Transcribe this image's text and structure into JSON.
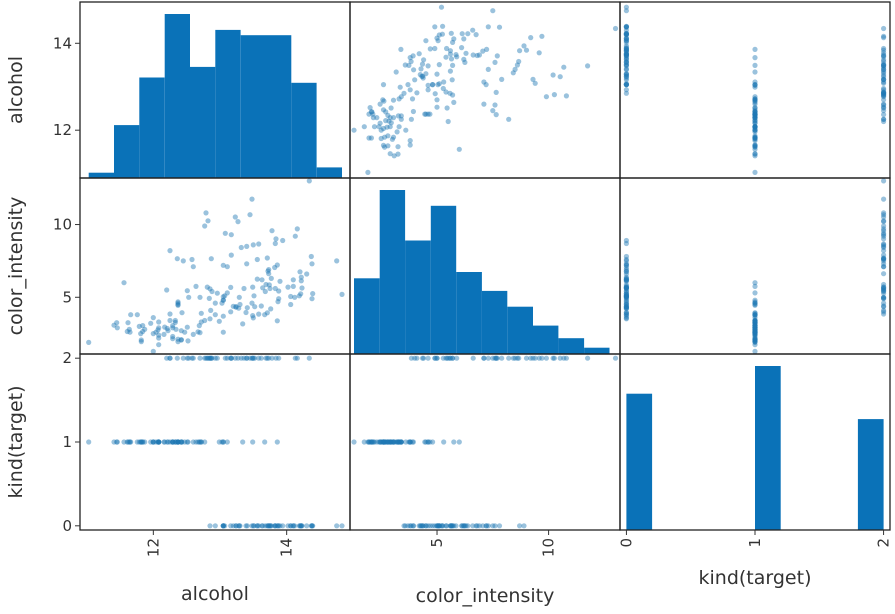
{
  "chart_data": {
    "type": "scatter-matrix",
    "variables": [
      "alcohol",
      "color_intensity",
      "kind(target)"
    ],
    "colors": {
      "marker": "#1f77b4",
      "bar": "#0a72b8",
      "frame": "#222222",
      "text": "#333333"
    },
    "ranges": {
      "alcohol": [
        10.9,
        14.95
      ],
      "color_intensity": [
        1.1,
        13.2
      ],
      "kind(target)": [
        -0.05,
        2.05
      ]
    },
    "ticks": {
      "alcohol": [
        {
          "v": 12,
          "label": "12"
        },
        {
          "v": 14,
          "label": "14"
        }
      ],
      "color_intensity": [
        {
          "v": 5,
          "label": "5"
        },
        {
          "v": 10,
          "label": "10"
        }
      ],
      "kind(target)": [
        {
          "v": 0,
          "label": "0"
        },
        {
          "v": 1,
          "label": "1"
        },
        {
          "v": 2,
          "label": "2"
        }
      ]
    },
    "histograms": {
      "alcohol": {
        "edges": [
          11.03,
          11.41,
          11.79,
          12.17,
          12.55,
          12.93,
          13.31,
          13.69,
          14.07,
          14.45,
          14.83
        ],
        "counts": [
          1,
          10,
          19,
          31,
          21,
          28,
          27,
          27,
          18,
          2
        ]
      },
      "color_intensity": {
        "edges": [
          1.28,
          2.43,
          3.57,
          4.72,
          5.86,
          7.01,
          8.15,
          9.3,
          10.44,
          11.59,
          12.73
        ],
        "counts": [
          24,
          52,
          36,
          47,
          26,
          20,
          15,
          9,
          5,
          2
        ]
      },
      "kind(target)": {
        "edges": [
          0,
          0.2,
          0.4,
          0.6,
          0.8,
          1.0,
          1.2,
          1.4,
          1.6,
          1.8,
          2.0
        ],
        "counts": [
          59,
          0,
          0,
          0,
          0,
          71,
          0,
          0,
          0,
          48
        ]
      }
    },
    "points": [
      [
        14.23,
        5.64,
        0
      ],
      [
        13.2,
        4.38,
        0
      ],
      [
        13.16,
        5.68,
        0
      ],
      [
        14.37,
        7.8,
        0
      ],
      [
        13.24,
        4.32,
        0
      ],
      [
        14.2,
        6.75,
        0
      ],
      [
        14.39,
        5.25,
        0
      ],
      [
        14.06,
        5.05,
        0
      ],
      [
        14.83,
        5.2,
        0
      ],
      [
        13.86,
        7.22,
        0
      ],
      [
        14.1,
        5.75,
        0
      ],
      [
        14.12,
        5.0,
        0
      ],
      [
        13.75,
        5.6,
        0
      ],
      [
        14.75,
        7.5,
        0
      ],
      [
        14.38,
        7.3,
        0
      ],
      [
        13.63,
        6.2,
        0
      ],
      [
        14.3,
        6.6,
        0
      ],
      [
        13.83,
        8.7,
        0
      ],
      [
        14.19,
        5.1,
        0
      ],
      [
        13.64,
        5.65,
        0
      ],
      [
        14.06,
        4.5,
        0
      ],
      [
        12.93,
        3.8,
        0
      ],
      [
        13.71,
        3.93,
        0
      ],
      [
        12.85,
        3.52,
        0
      ],
      [
        13.5,
        3.58,
        0
      ],
      [
        13.05,
        4.8,
        0
      ],
      [
        13.39,
        3.95,
        0
      ],
      [
        13.3,
        4.5,
        0
      ],
      [
        13.87,
        4.7,
        0
      ],
      [
        14.02,
        5.7,
        0
      ],
      [
        13.73,
        6.9,
        0
      ],
      [
        13.58,
        3.84,
        0
      ],
      [
        13.68,
        5.4,
        0
      ],
      [
        13.76,
        4.2,
        0
      ],
      [
        13.51,
        5.1,
        0
      ],
      [
        13.48,
        4.6,
        0
      ],
      [
        13.28,
        4.25,
        0
      ],
      [
        13.05,
        3.7,
        0
      ],
      [
        13.07,
        5.1,
        0
      ],
      [
        14.22,
        6.13,
        0
      ],
      [
        13.56,
        7.6,
        0
      ],
      [
        13.41,
        4.28,
        0
      ],
      [
        13.88,
        5.43,
        0
      ],
      [
        13.24,
        4.36,
        0
      ],
      [
        13.05,
        5.04,
        0
      ],
      [
        14.21,
        5.24,
        0
      ],
      [
        14.38,
        4.9,
        0
      ],
      [
        13.9,
        6.1,
        0
      ],
      [
        14.1,
        6.2,
        0
      ],
      [
        13.94,
        8.9,
        0
      ],
      [
        13.05,
        7.2,
        0
      ],
      [
        13.83,
        5.6,
        0
      ],
      [
        13.82,
        7.05,
        0
      ],
      [
        13.77,
        6.3,
        0
      ],
      [
        13.74,
        5.85,
        0
      ],
      [
        13.56,
        6.25,
        0
      ],
      [
        14.22,
        6.38,
        0
      ],
      [
        13.29,
        5.0,
        0
      ],
      [
        13.72,
        6.8,
        0
      ],
      [
        12.37,
        1.95,
        1
      ],
      [
        12.33,
        3.27,
        1
      ],
      [
        12.64,
        5.75,
        1
      ],
      [
        13.67,
        3.8,
        1
      ],
      [
        12.37,
        4.45,
        1
      ],
      [
        12.17,
        2.95,
        1
      ],
      [
        12.37,
        4.6,
        1
      ],
      [
        13.11,
        5.3,
        1
      ],
      [
        12.37,
        4.68,
        1
      ],
      [
        13.34,
        3.17,
        1
      ],
      [
        12.21,
        2.85,
        1
      ],
      [
        12.29,
        3.05,
        1
      ],
      [
        13.86,
        3.38,
        1
      ],
      [
        13.49,
        3.74,
        1
      ],
      [
        12.99,
        3.35,
        1
      ],
      [
        11.96,
        3.21,
        1
      ],
      [
        11.66,
        3.8,
        1
      ],
      [
        13.03,
        4.6,
        1
      ],
      [
        11.84,
        2.65,
        1
      ],
      [
        12.33,
        3.4,
        1
      ],
      [
        12.7,
        2.57,
        1
      ],
      [
        12.0,
        2.5,
        1
      ],
      [
        12.72,
        3.9,
        1
      ],
      [
        12.08,
        2.2,
        1
      ],
      [
        13.05,
        4.8,
        1
      ],
      [
        11.84,
        3.05,
        1
      ],
      [
        12.67,
        2.62,
        1
      ],
      [
        12.16,
        2.45,
        1
      ],
      [
        11.65,
        2.6,
        1
      ],
      [
        11.64,
        2.8,
        1
      ],
      [
        12.08,
        1.74,
        1
      ],
      [
        12.08,
        2.4,
        1
      ],
      [
        12.0,
        3.6,
        1
      ],
      [
        12.69,
        3.05,
        1
      ],
      [
        12.29,
        2.15,
        1
      ],
      [
        11.62,
        3.25,
        1
      ],
      [
        12.47,
        2.6,
        1
      ],
      [
        11.81,
        2.5,
        1
      ],
      [
        12.29,
        2.9,
        1
      ],
      [
        12.37,
        4.5,
        1
      ],
      [
        12.29,
        2.3,
        1
      ],
      [
        12.08,
        3.3,
        1
      ],
      [
        12.6,
        2.45,
        1
      ],
      [
        12.34,
        2.8,
        1
      ],
      [
        11.82,
        2.06,
        1
      ],
      [
        12.51,
        2.94,
        1
      ],
      [
        12.42,
        2.7,
        1
      ],
      [
        12.25,
        3.4,
        1
      ],
      [
        12.72,
        3.3,
        1
      ],
      [
        12.22,
        2.7,
        1
      ],
      [
        11.61,
        2.65,
        1
      ],
      [
        11.46,
        2.9,
        1
      ],
      [
        12.52,
        2.0,
        1
      ],
      [
        11.76,
        3.8,
        1
      ],
      [
        11.41,
        3.08,
        1
      ],
      [
        12.08,
        2.9,
        1
      ],
      [
        11.03,
        1.9,
        1
      ],
      [
        11.82,
        1.95,
        1
      ],
      [
        12.42,
        2.06,
        1
      ],
      [
        12.77,
        3.4,
        1
      ],
      [
        12.0,
        1.28,
        1
      ],
      [
        11.45,
        3.25,
        1
      ],
      [
        11.56,
        6.0,
        1
      ],
      [
        12.42,
        2.08,
        1
      ],
      [
        13.05,
        2.6,
        1
      ],
      [
        11.87,
        2.8,
        1
      ],
      [
        12.07,
        2.76,
        1
      ],
      [
        12.43,
        3.94,
        1
      ],
      [
        11.79,
        3.0,
        1
      ],
      [
        12.37,
        2.12,
        1
      ],
      [
        12.04,
        2.6,
        1
      ],
      [
        12.86,
        4.1,
        2
      ],
      [
        12.88,
        5.4,
        2
      ],
      [
        12.81,
        5.7,
        2
      ],
      [
        12.7,
        5.0,
        2
      ],
      [
        12.51,
        5.45,
        2
      ],
      [
        12.6,
        7.1,
        2
      ],
      [
        12.25,
        3.85,
        2
      ],
      [
        12.53,
        5.0,
        2
      ],
      [
        13.49,
        5.7,
        2
      ],
      [
        12.84,
        4.92,
        2
      ],
      [
        12.93,
        4.6,
        2
      ],
      [
        13.36,
        5.6,
        2
      ],
      [
        13.52,
        4.35,
        2
      ],
      [
        13.62,
        4.4,
        2
      ],
      [
        12.25,
        8.21,
        2
      ],
      [
        13.16,
        4.0,
        2
      ],
      [
        13.88,
        4.9,
        2
      ],
      [
        12.87,
        7.65,
        2
      ],
      [
        13.32,
        8.42,
        2
      ],
      [
        13.08,
        9.4,
        2
      ],
      [
        13.5,
        8.6,
        2
      ],
      [
        12.79,
        10.8,
        2
      ],
      [
        13.11,
        7.1,
        2
      ],
      [
        13.23,
        10.52,
        2
      ],
      [
        12.58,
        7.6,
        2
      ],
      [
        13.17,
        7.9,
        2
      ],
      [
        13.84,
        9.01,
        2
      ],
      [
        12.45,
        7.5,
        2
      ],
      [
        14.34,
        13.0,
        2
      ],
      [
        13.48,
        11.75,
        2
      ],
      [
        12.36,
        7.65,
        2
      ],
      [
        13.69,
        5.88,
        2
      ],
      [
        12.85,
        5.58,
        2
      ],
      [
        12.96,
        5.28,
        2
      ],
      [
        13.78,
        9.58,
        2
      ],
      [
        13.73,
        6.62,
        2
      ],
      [
        13.45,
        10.68,
        2
      ],
      [
        12.82,
        10.26,
        2
      ],
      [
        13.58,
        8.66,
        2
      ],
      [
        13.4,
        8.5,
        2
      ],
      [
        12.2,
        5.5,
        2
      ],
      [
        12.77,
        9.9,
        2
      ],
      [
        14.16,
        9.7,
        2
      ],
      [
        13.71,
        7.7,
        2
      ],
      [
        13.4,
        7.3,
        2
      ],
      [
        13.27,
        10.2,
        2
      ],
      [
        13.17,
        9.3,
        2
      ],
      [
        14.13,
        9.2,
        2
      ]
    ]
  }
}
